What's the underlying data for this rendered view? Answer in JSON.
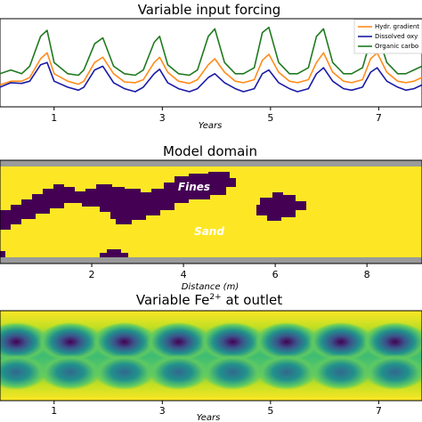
{
  "chart_data": [
    {
      "type": "line",
      "title": "Variable input forcing",
      "xlabel": "Years",
      "xlim": [
        0,
        7.8
      ],
      "ylim": [
        0,
        1
      ],
      "x_ticks": [
        "1",
        "3",
        "5",
        "7"
      ],
      "x_tick_values": [
        1,
        3,
        5,
        7
      ],
      "legend_position": "top-right",
      "series": [
        {
          "name": "Hydr. gradient",
          "color": "#ff8c1a",
          "x": [
            0,
            0.2,
            0.4,
            0.55,
            0.75,
            0.87,
            1.0,
            1.25,
            1.45,
            1.55,
            1.75,
            1.9,
            2.1,
            2.3,
            2.5,
            2.65,
            2.85,
            2.95,
            3.1,
            3.3,
            3.5,
            3.65,
            3.85,
            3.97,
            4.15,
            4.35,
            4.5,
            4.7,
            4.85,
            4.97,
            5.15,
            5.35,
            5.5,
            5.7,
            5.85,
            5.98,
            6.15,
            6.35,
            6.5,
            6.7,
            6.85,
            6.97,
            7.15,
            7.35,
            7.5,
            7.65,
            7.8
          ],
          "values": [
            0.15,
            0.2,
            0.2,
            0.25,
            0.5,
            0.58,
            0.3,
            0.2,
            0.16,
            0.2,
            0.45,
            0.52,
            0.3,
            0.19,
            0.18,
            0.22,
            0.45,
            0.52,
            0.32,
            0.2,
            0.17,
            0.22,
            0.42,
            0.5,
            0.32,
            0.2,
            0.18,
            0.22,
            0.48,
            0.56,
            0.32,
            0.2,
            0.18,
            0.22,
            0.45,
            0.58,
            0.32,
            0.2,
            0.18,
            0.22,
            0.5,
            0.58,
            0.32,
            0.2,
            0.18,
            0.2,
            0.25
          ]
        },
        {
          "name": "Dissolved oxy",
          "color": "#1a1aa6",
          "x": [
            0,
            0.2,
            0.4,
            0.55,
            0.75,
            0.87,
            1.0,
            1.25,
            1.45,
            1.55,
            1.75,
            1.9,
            2.1,
            2.3,
            2.5,
            2.65,
            2.85,
            2.95,
            3.1,
            3.3,
            3.5,
            3.65,
            3.85,
            3.97,
            4.15,
            4.35,
            4.5,
            4.7,
            4.85,
            4.97,
            5.15,
            5.35,
            5.5,
            5.7,
            5.85,
            5.98,
            6.15,
            6.35,
            6.5,
            6.7,
            6.85,
            6.97,
            7.15,
            7.35,
            7.5,
            7.65,
            7.8
          ],
          "values": [
            0.12,
            0.18,
            0.17,
            0.2,
            0.42,
            0.45,
            0.2,
            0.12,
            0.08,
            0.12,
            0.35,
            0.4,
            0.18,
            0.1,
            0.06,
            0.12,
            0.3,
            0.36,
            0.18,
            0.1,
            0.06,
            0.1,
            0.25,
            0.3,
            0.18,
            0.1,
            0.06,
            0.1,
            0.3,
            0.35,
            0.18,
            0.1,
            0.06,
            0.1,
            0.3,
            0.38,
            0.2,
            0.1,
            0.08,
            0.12,
            0.32,
            0.38,
            0.2,
            0.12,
            0.08,
            0.1,
            0.15
          ]
        },
        {
          "name": "Organic carbo",
          "color": "#1f7a1f",
          "x": [
            0,
            0.2,
            0.4,
            0.55,
            0.75,
            0.87,
            1.0,
            1.25,
            1.45,
            1.55,
            1.75,
            1.9,
            2.1,
            2.3,
            2.5,
            2.65,
            2.85,
            2.95,
            3.1,
            3.3,
            3.5,
            3.65,
            3.85,
            3.97,
            4.15,
            4.35,
            4.5,
            4.7,
            4.85,
            4.97,
            5.15,
            5.35,
            5.5,
            5.7,
            5.85,
            5.98,
            6.15,
            6.35,
            6.5,
            6.7,
            6.85,
            6.97,
            7.15,
            7.35,
            7.5,
            7.65,
            7.8
          ],
          "values": [
            0.3,
            0.35,
            0.3,
            0.4,
            0.8,
            0.88,
            0.45,
            0.3,
            0.28,
            0.35,
            0.7,
            0.78,
            0.4,
            0.3,
            0.28,
            0.35,
            0.72,
            0.8,
            0.42,
            0.3,
            0.28,
            0.35,
            0.8,
            0.9,
            0.45,
            0.3,
            0.3,
            0.38,
            0.85,
            0.92,
            0.45,
            0.3,
            0.3,
            0.38,
            0.8,
            0.9,
            0.45,
            0.3,
            0.3,
            0.38,
            0.75,
            0.85,
            0.45,
            0.3,
            0.3,
            0.35,
            0.4
          ]
        }
      ]
    },
    {
      "type": "heatmap",
      "title": "Model domain",
      "xlabel": "Distance (m)",
      "xlim": [
        0,
        9.2
      ],
      "x_ticks": [
        "2",
        "4",
        "6",
        "8"
      ],
      "x_tick_values": [
        2,
        4,
        6,
        8
      ],
      "annotations": [
        "Fines",
        "Sand"
      ],
      "colors": {
        "sand": "#fde725",
        "fines": "#440154",
        "boundary": "#9a9a9a"
      }
    },
    {
      "type": "heatmap",
      "title": "Variable Fe",
      "title_superscript": "2+",
      "title_suffix": " at outlet",
      "xlabel": "Years",
      "xlim": [
        0,
        7.8
      ],
      "x_ticks": [
        "1",
        "3",
        "5",
        "7"
      ],
      "x_tick_values": [
        1,
        3,
        5,
        7
      ],
      "blob_centers": [
        0.3,
        1.3,
        2.3,
        3.3,
        4.3,
        5.3,
        6.3,
        7.3
      ]
    }
  ]
}
